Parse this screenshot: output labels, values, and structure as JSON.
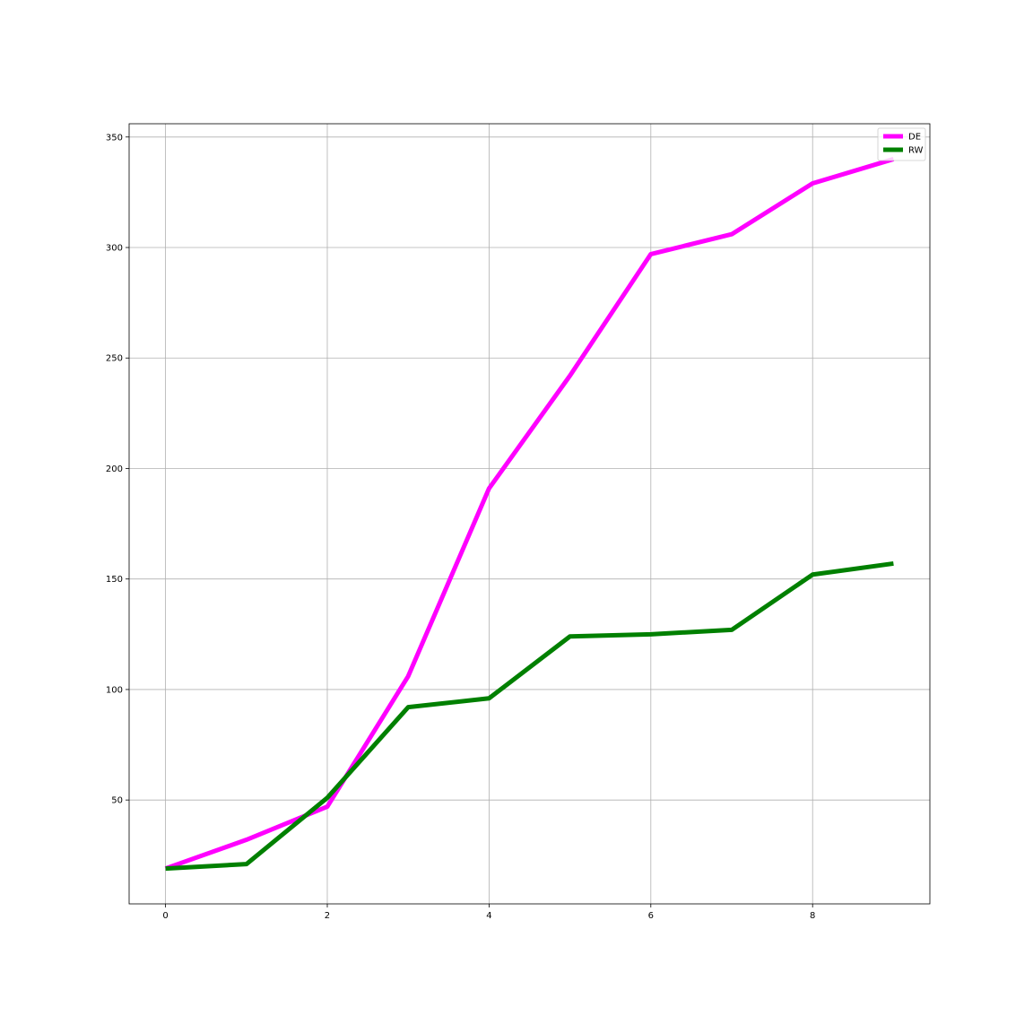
{
  "chart_data": {
    "type": "line",
    "title": "",
    "xlabel": "",
    "ylabel": "",
    "x": [
      0,
      1,
      2,
      3,
      4,
      5,
      6,
      7,
      8,
      9
    ],
    "xlim": [
      -0.45,
      9.45
    ],
    "ylim": [
      3,
      356
    ],
    "xticks": [
      0,
      2,
      4,
      6,
      8
    ],
    "yticks": [
      50,
      100,
      150,
      200,
      250,
      300,
      350
    ],
    "grid": true,
    "legend_position": "top-right",
    "series": [
      {
        "name": "DE",
        "color": "#ff00ff",
        "values": [
          19,
          32,
          47,
          106,
          191,
          242,
          297,
          306,
          329,
          340
        ]
      },
      {
        "name": "RW",
        "color": "#008000",
        "values": [
          19,
          21,
          51,
          92,
          96,
          124,
          125,
          127,
          152,
          157
        ]
      }
    ]
  }
}
